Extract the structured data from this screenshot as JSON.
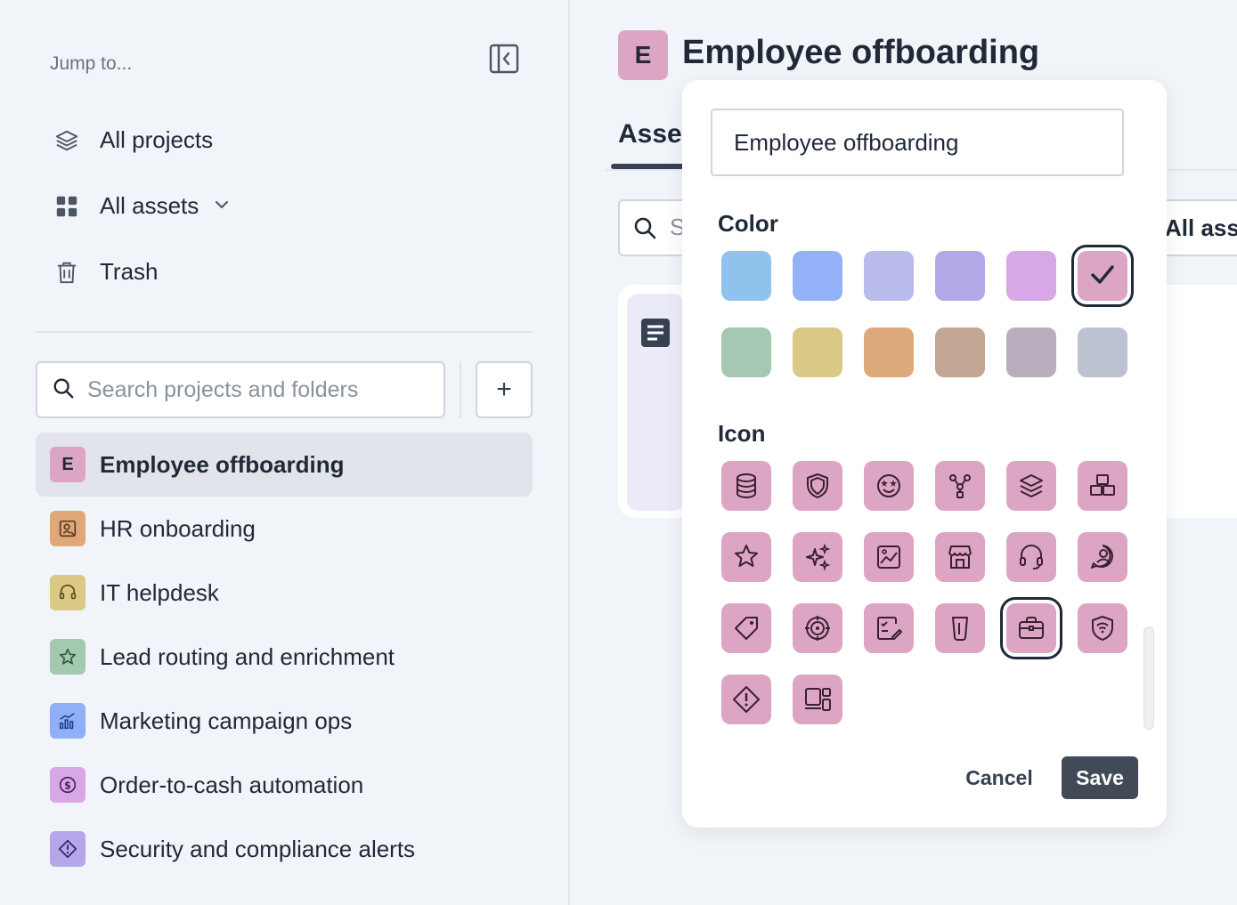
{
  "sidebar": {
    "jump_label": "Jump to...",
    "nav": [
      {
        "label": "All projects",
        "icon": "stack-icon"
      },
      {
        "label": "All assets",
        "icon": "grid-icon",
        "has_dropdown": true
      },
      {
        "label": "Trash",
        "icon": "trash-icon"
      }
    ],
    "search_placeholder": "Search projects and folders",
    "add_label": "+",
    "projects": [
      {
        "label": "Employee offboarding",
        "badge": "E",
        "color": "#dda5c4",
        "active": true
      },
      {
        "label": "HR onboarding",
        "icon": "user-edit-icon",
        "color": "#e0a878"
      },
      {
        "label": "IT helpdesk",
        "icon": "headset-icon",
        "color": "#dbc985"
      },
      {
        "label": "Lead routing and enrichment",
        "icon": "star-icon",
        "color": "#a4c9b1"
      },
      {
        "label": "Marketing campaign ops",
        "icon": "chart-growth-icon",
        "color": "#8fb0f6"
      },
      {
        "label": "Order-to-cash automation",
        "icon": "dollar-coin-icon",
        "color": "#d8a8e6"
      },
      {
        "label": "Security and compliance alerts",
        "icon": "alert-diamond-icon",
        "color": "#b4a6e8"
      }
    ]
  },
  "main": {
    "badge": "E",
    "title": "Employee offboarding",
    "tab_assets": "Asset",
    "search_partial": "S",
    "all_assets_partial": "All asse"
  },
  "popup": {
    "name_value": "Employee offboarding",
    "color_label": "Color",
    "icon_label": "Icon",
    "colors": [
      "#8fc3ee",
      "#93b2f8",
      "#b9bbea",
      "#b3a7e8",
      "#d8a8e6",
      "#dda5c4",
      "#a4c8b3",
      "#d9c985",
      "#dda87a",
      "#c3a594",
      "#b8adbd",
      "#bcc2cf"
    ],
    "selected_color": "#dda5c4",
    "icons": [
      "database-icon",
      "shield-icon",
      "star-eyes-icon",
      "hierarchy-icon",
      "layers-icon",
      "cubes-icon",
      "star-icon",
      "sparkles-icon",
      "image-chart-icon",
      "store-icon",
      "headset-icon",
      "person-bubble-icon",
      "tag-icon",
      "target-icon",
      "edit-list-icon",
      "beaker-icon",
      "briefcase-icon",
      "shield-wifi-icon",
      "alert-diamond-icon",
      "devices-icon"
    ],
    "selected_icon": "briefcase-icon",
    "cancel_label": "Cancel",
    "save_label": "Save"
  }
}
